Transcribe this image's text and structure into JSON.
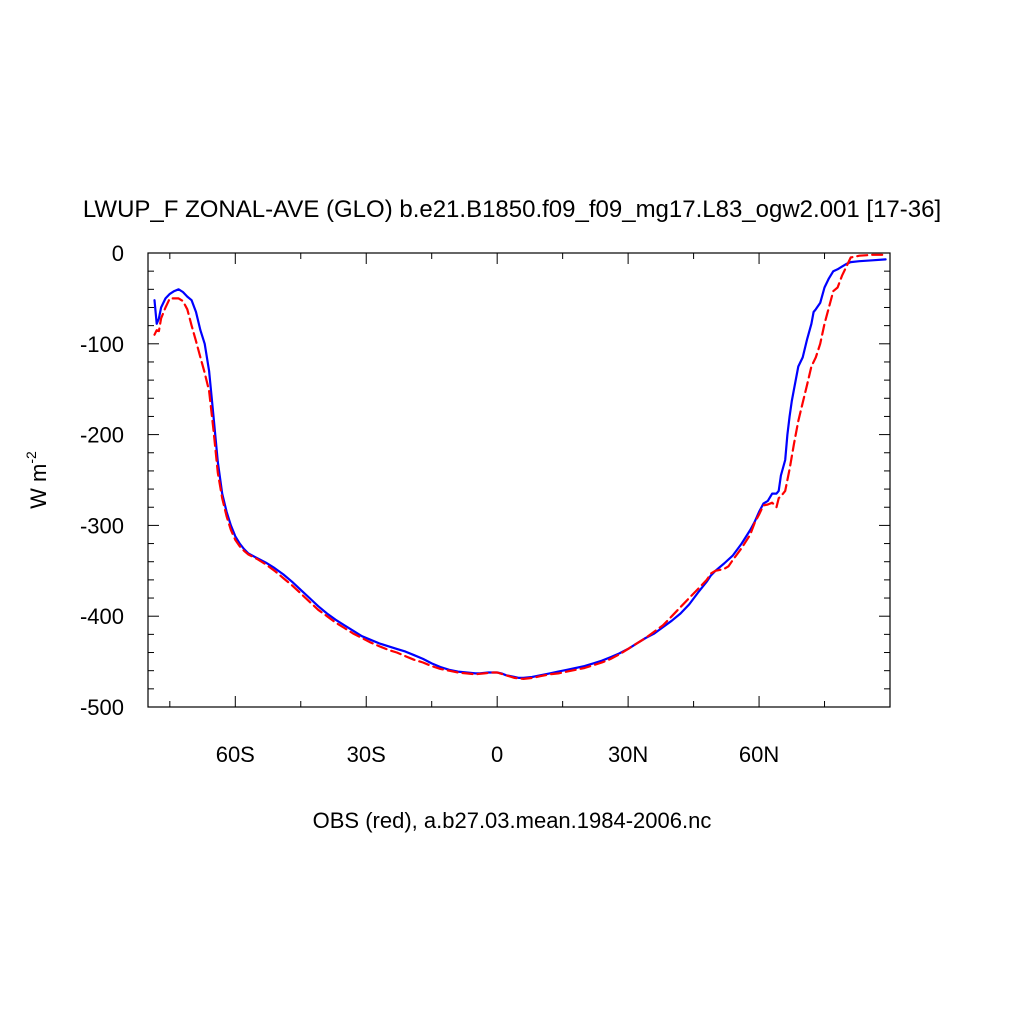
{
  "chart_data": {
    "type": "line",
    "title": "LWUP_F ZONAL-AVE (GLO) b.e21.B1850.f09_f09_mg17.L83_ogw2.001 [17-36]",
    "xlabel": "OBS (red), a.b27.03.mean.1984-2006.nc",
    "ylabel": "W m",
    "ylabel_superscript": "-2",
    "xlim": [
      -80,
      90
    ],
    "ylim": [
      -500,
      0
    ],
    "x_ticks": [
      {
        "value": -60,
        "label": "60S"
      },
      {
        "value": -30,
        "label": "30S"
      },
      {
        "value": 0,
        "label": "0"
      },
      {
        "value": 30,
        "label": "30N"
      },
      {
        "value": 60,
        "label": "60N"
      }
    ],
    "y_ticks": [
      {
        "value": 0,
        "label": "0"
      },
      {
        "value": -100,
        "label": "-100"
      },
      {
        "value": -200,
        "label": "-200"
      },
      {
        "value": -300,
        "label": "-300"
      },
      {
        "value": -400,
        "label": "-400"
      },
      {
        "value": -500,
        "label": "-500"
      }
    ],
    "series": [
      {
        "color": "#0000ff",
        "dash": "solid",
        "points": [
          [
            -78.5,
            -52
          ],
          [
            -78,
            -78
          ],
          [
            -77.5,
            -72
          ],
          [
            -77,
            -60
          ],
          [
            -76,
            -50
          ],
          [
            -75,
            -45
          ],
          [
            -74,
            -42
          ],
          [
            -73,
            -40
          ],
          [
            -72,
            -43
          ],
          [
            -71,
            -48
          ],
          [
            -70,
            -52
          ],
          [
            -69,
            -65
          ],
          [
            -68,
            -85
          ],
          [
            -67,
            -100
          ],
          [
            -66,
            -130
          ],
          [
            -65,
            -180
          ],
          [
            -64,
            -230
          ],
          [
            -63,
            -265
          ],
          [
            -62,
            -285
          ],
          [
            -61,
            -300
          ],
          [
            -60,
            -312
          ],
          [
            -59,
            -320
          ],
          [
            -58,
            -326
          ],
          [
            -57,
            -331
          ],
          [
            -55,
            -336
          ],
          [
            -53,
            -341
          ],
          [
            -51,
            -347
          ],
          [
            -49,
            -354
          ],
          [
            -47,
            -362
          ],
          [
            -45,
            -371
          ],
          [
            -43,
            -380
          ],
          [
            -41,
            -389
          ],
          [
            -39,
            -397
          ],
          [
            -37,
            -404
          ],
          [
            -35,
            -410
          ],
          [
            -33,
            -416
          ],
          [
            -31,
            -422
          ],
          [
            -29,
            -426
          ],
          [
            -27,
            -430
          ],
          [
            -25,
            -433
          ],
          [
            -23,
            -436
          ],
          [
            -21,
            -439
          ],
          [
            -19,
            -443
          ],
          [
            -17,
            -447
          ],
          [
            -15,
            -452
          ],
          [
            -13,
            -456
          ],
          [
            -11,
            -459
          ],
          [
            -9,
            -461
          ],
          [
            -7,
            -462
          ],
          [
            -5,
            -463
          ],
          [
            -4,
            -463
          ],
          [
            -2,
            -462
          ],
          [
            0,
            -462
          ],
          [
            1,
            -463
          ],
          [
            2,
            -465
          ],
          [
            3,
            -466
          ],
          [
            4,
            -467
          ],
          [
            5,
            -468
          ],
          [
            6,
            -468
          ],
          [
            8,
            -467
          ],
          [
            10,
            -465
          ],
          [
            12,
            -463
          ],
          [
            14,
            -461
          ],
          [
            16,
            -459
          ],
          [
            18,
            -457
          ],
          [
            20,
            -455
          ],
          [
            22,
            -452
          ],
          [
            24,
            -449
          ],
          [
            26,
            -445
          ],
          [
            28,
            -441
          ],
          [
            30,
            -436
          ],
          [
            32,
            -430
          ],
          [
            34,
            -424
          ],
          [
            36,
            -419
          ],
          [
            38,
            -412
          ],
          [
            40,
            -405
          ],
          [
            42,
            -397
          ],
          [
            44,
            -387
          ],
          [
            46,
            -374
          ],
          [
            48,
            -362
          ],
          [
            49,
            -355
          ],
          [
            50,
            -350
          ],
          [
            52,
            -342
          ],
          [
            54,
            -333
          ],
          [
            56,
            -320
          ],
          [
            58,
            -305
          ],
          [
            59,
            -296
          ],
          [
            60,
            -285
          ],
          [
            61,
            -276
          ],
          [
            62,
            -273
          ],
          [
            63,
            -265
          ],
          [
            64,
            -265
          ],
          [
            64.5,
            -262
          ],
          [
            65,
            -245
          ],
          [
            66,
            -228
          ],
          [
            66.5,
            -200
          ],
          [
            67,
            -180
          ],
          [
            67.5,
            -163
          ],
          [
            68,
            -150
          ],
          [
            69,
            -125
          ],
          [
            70,
            -115
          ],
          [
            71,
            -95
          ],
          [
            72,
            -78
          ],
          [
            72.5,
            -65
          ],
          [
            73,
            -62
          ],
          [
            74,
            -55
          ],
          [
            75,
            -38
          ],
          [
            76,
            -28
          ],
          [
            77,
            -20
          ],
          [
            78,
            -18
          ],
          [
            79,
            -15
          ],
          [
            80,
            -12
          ],
          [
            81,
            -10
          ],
          [
            83,
            -9
          ],
          [
            86,
            -8
          ],
          [
            89,
            -7
          ]
        ]
      },
      {
        "color": "#ff0000",
        "dash": "dashed",
        "points": [
          [
            -78.5,
            -90
          ],
          [
            -78,
            -85
          ],
          [
            -77.5,
            -86
          ],
          [
            -77,
            -72
          ],
          [
            -76,
            -60
          ],
          [
            -75,
            -50
          ],
          [
            -74,
            -50
          ],
          [
            -73,
            -50
          ],
          [
            -72,
            -53
          ],
          [
            -71,
            -62
          ],
          [
            -70,
            -80
          ],
          [
            -69,
            -97
          ],
          [
            -68,
            -115
          ],
          [
            -67,
            -132
          ],
          [
            -66,
            -152
          ],
          [
            -65,
            -195
          ],
          [
            -64,
            -242
          ],
          [
            -63,
            -270
          ],
          [
            -62,
            -290
          ],
          [
            -61,
            -305
          ],
          [
            -60,
            -316
          ],
          [
            -59,
            -323
          ],
          [
            -58,
            -328
          ],
          [
            -57,
            -332
          ],
          [
            -55,
            -337
          ],
          [
            -53,
            -343
          ],
          [
            -51,
            -350
          ],
          [
            -49,
            -358
          ],
          [
            -47,
            -366
          ],
          [
            -45,
            -375
          ],
          [
            -43,
            -384
          ],
          [
            -41,
            -393
          ],
          [
            -39,
            -400
          ],
          [
            -37,
            -407
          ],
          [
            -35,
            -413
          ],
          [
            -33,
            -419
          ],
          [
            -31,
            -424
          ],
          [
            -29,
            -429
          ],
          [
            -27,
            -433
          ],
          [
            -25,
            -437
          ],
          [
            -23,
            -440
          ],
          [
            -21,
            -444
          ],
          [
            -19,
            -448
          ],
          [
            -17,
            -451
          ],
          [
            -15,
            -455
          ],
          [
            -13,
            -458
          ],
          [
            -11,
            -460
          ],
          [
            -9,
            -462
          ],
          [
            -7,
            -463
          ],
          [
            -5,
            -464
          ],
          [
            -3,
            -463
          ],
          [
            -1,
            -462
          ],
          [
            0,
            -462
          ],
          [
            2,
            -465
          ],
          [
            4,
            -468
          ],
          [
            6,
            -469
          ],
          [
            8,
            -468
          ],
          [
            10,
            -466
          ],
          [
            12,
            -464
          ],
          [
            14,
            -463
          ],
          [
            16,
            -461
          ],
          [
            18,
            -459
          ],
          [
            20,
            -457
          ],
          [
            22,
            -454
          ],
          [
            24,
            -451
          ],
          [
            26,
            -447
          ],
          [
            28,
            -442
          ],
          [
            30,
            -436
          ],
          [
            32,
            -430
          ],
          [
            34,
            -424
          ],
          [
            36,
            -417
          ],
          [
            38,
            -410
          ],
          [
            40,
            -400
          ],
          [
            42,
            -390
          ],
          [
            44,
            -380
          ],
          [
            46,
            -370
          ],
          [
            48,
            -360
          ],
          [
            49,
            -353
          ],
          [
            50,
            -350
          ],
          [
            52,
            -348
          ],
          [
            53,
            -345
          ],
          [
            54,
            -338
          ],
          [
            56,
            -325
          ],
          [
            58,
            -310
          ],
          [
            59,
            -297
          ],
          [
            60,
            -288
          ],
          [
            61,
            -278
          ],
          [
            62,
            -277
          ],
          [
            63,
            -275
          ],
          [
            64,
            -280
          ],
          [
            64.5,
            -270
          ],
          [
            65,
            -268
          ],
          [
            66,
            -262
          ],
          [
            67,
            -238
          ],
          [
            68,
            -210
          ],
          [
            69,
            -185
          ],
          [
            70,
            -165
          ],
          [
            71,
            -145
          ],
          [
            72,
            -125
          ],
          [
            73,
            -115
          ],
          [
            74,
            -100
          ],
          [
            75,
            -78
          ],
          [
            76,
            -60
          ],
          [
            77,
            -42
          ],
          [
            78,
            -38
          ],
          [
            79,
            -25
          ],
          [
            80,
            -15
          ],
          [
            81,
            -5
          ],
          [
            83,
            -3
          ],
          [
            86,
            -2
          ],
          [
            89,
            -2
          ]
        ]
      }
    ]
  }
}
